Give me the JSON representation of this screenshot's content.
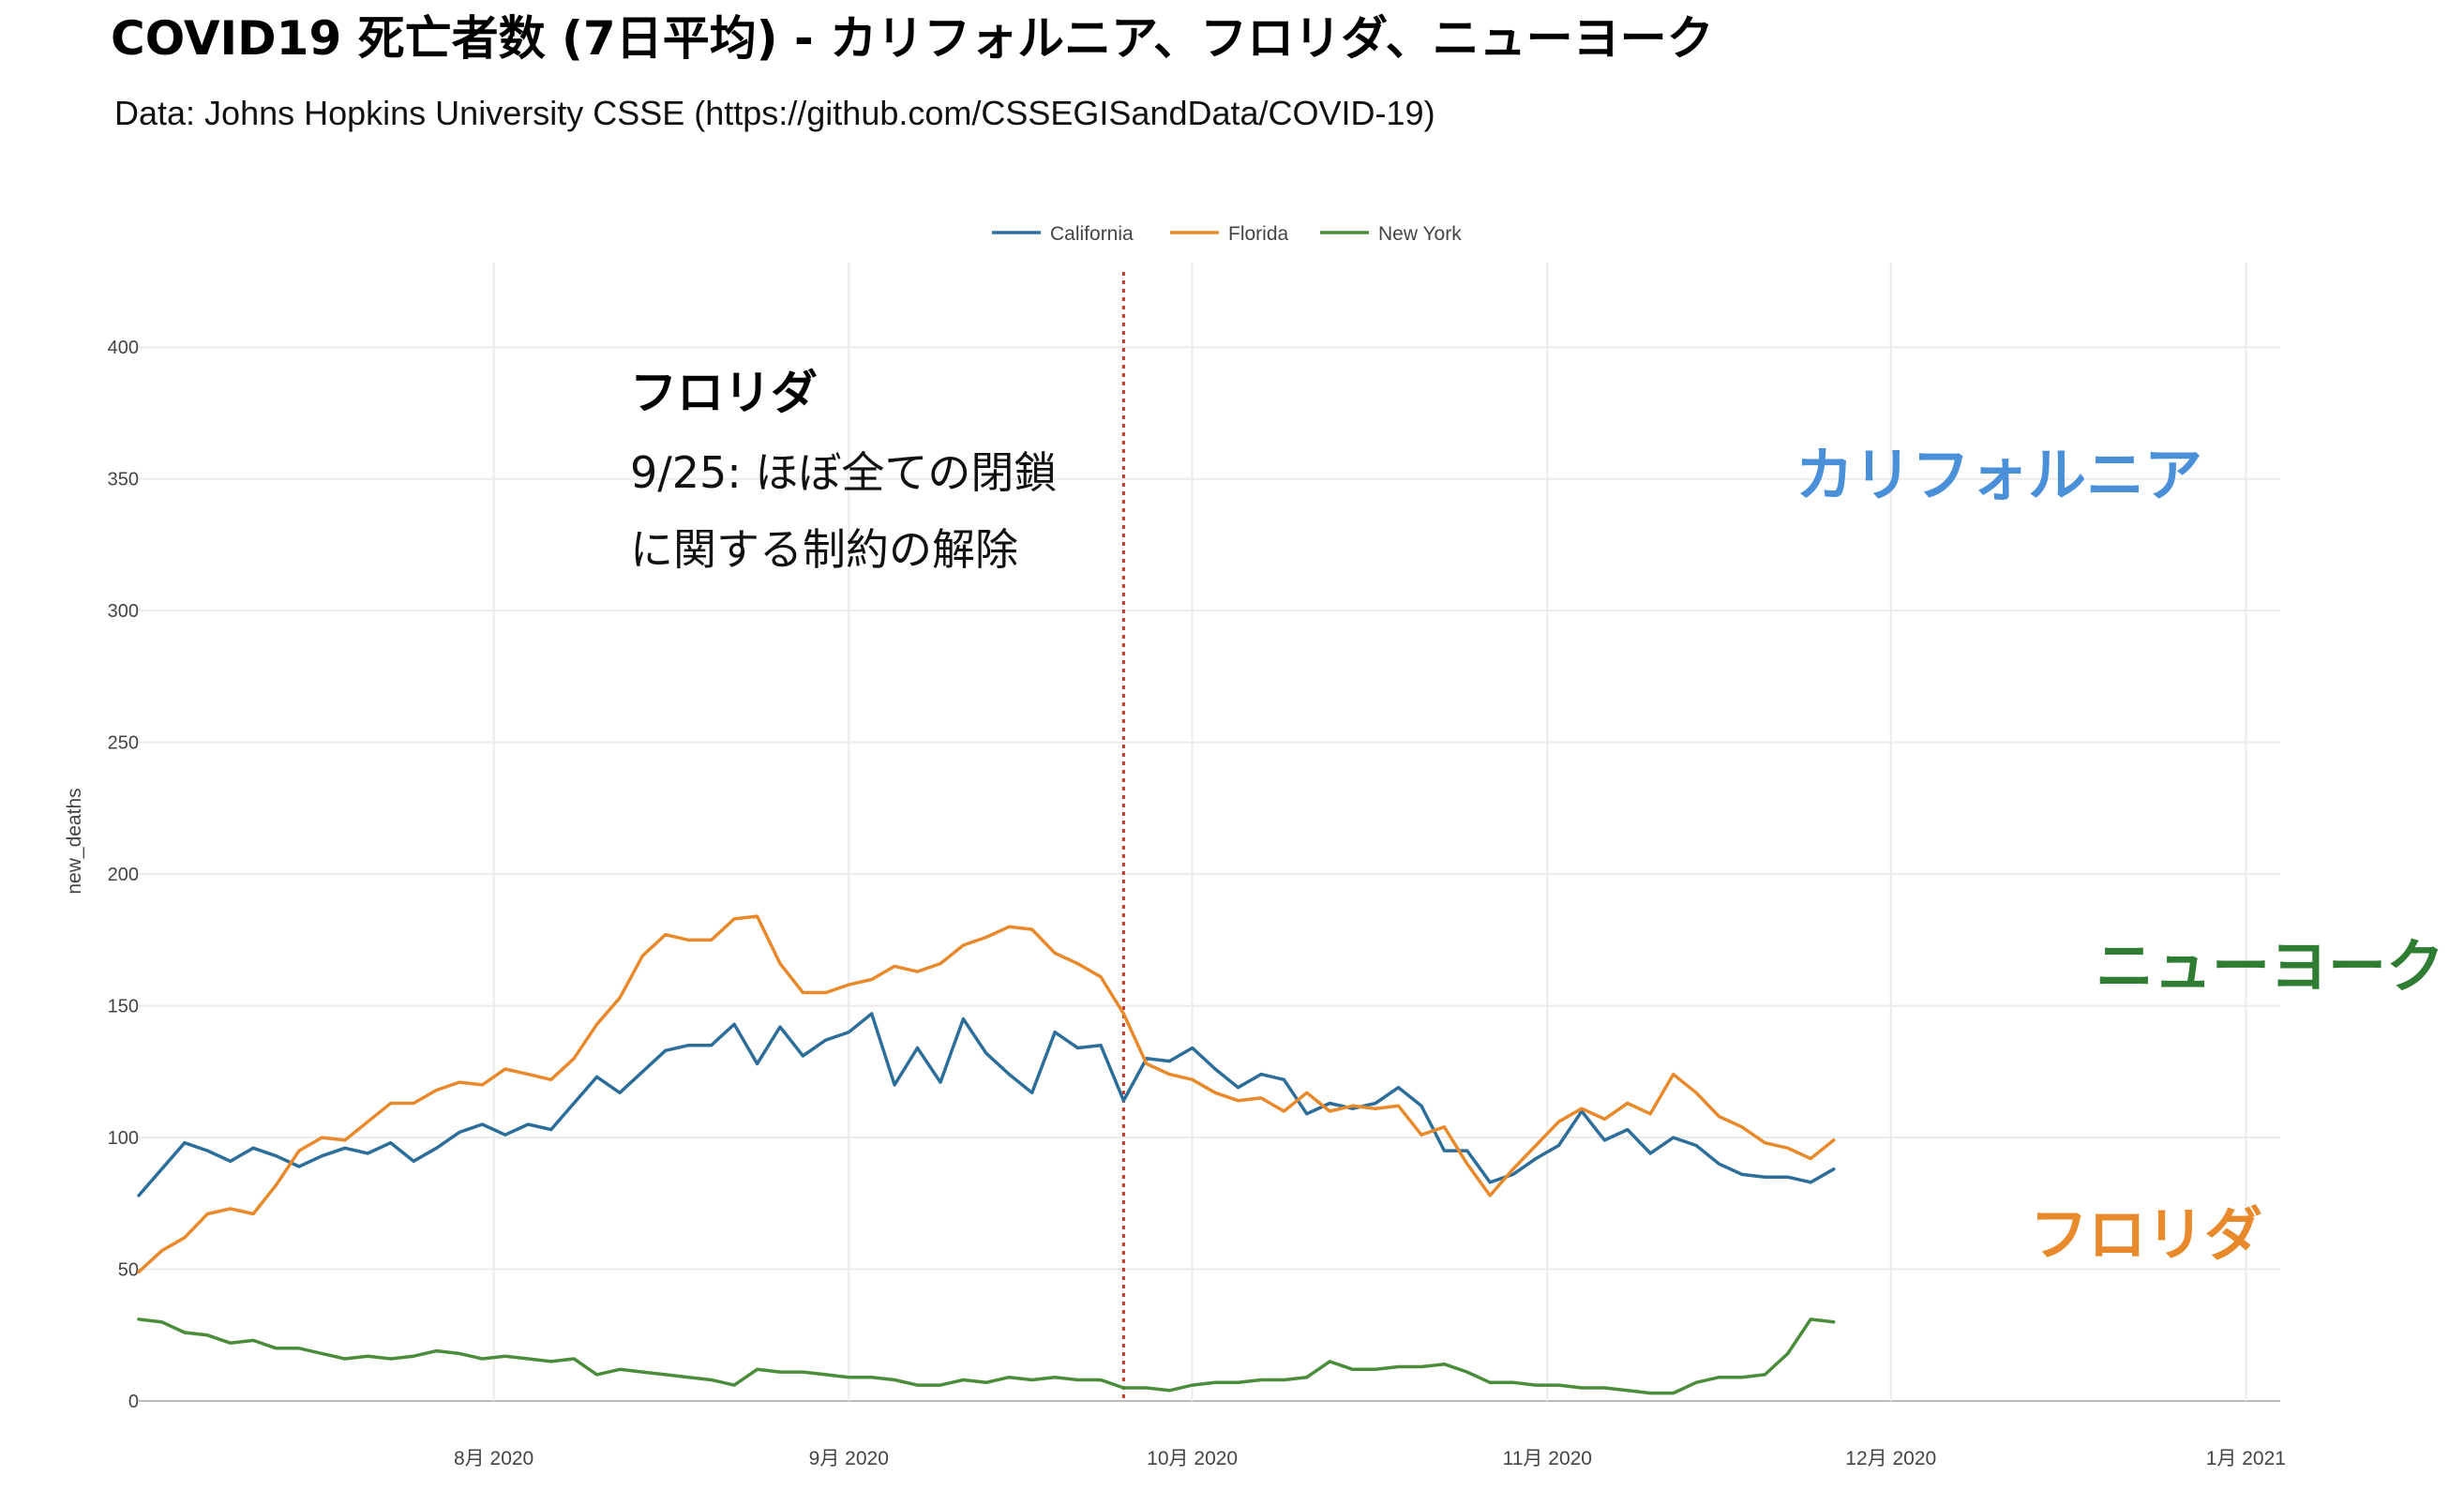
{
  "title": "COVID19 死亡者数 (7日平均) - カリフォルニア、フロリダ、ニューヨーク",
  "subtitle": "Data: Johns Hopkins University CSSE (https://github.com/CSSEGISandData/COVID-19)",
  "chart_data": {
    "type": "line",
    "ylabel": "new_deaths",
    "xlabel": "",
    "ylim": [
      0,
      425
    ],
    "xlim": [
      "2020-07-01",
      "2021-01-04"
    ],
    "y_ticks": [
      0,
      50,
      100,
      150,
      200,
      250,
      300,
      350,
      400
    ],
    "x_ticks": [
      {
        "date": "2020-08-01",
        "label": "8月 2020"
      },
      {
        "date": "2020-09-01",
        "label": "9月 2020"
      },
      {
        "date": "2020-10-01",
        "label": "10月 2020"
      },
      {
        "date": "2020-11-01",
        "label": "11月 2020"
      },
      {
        "date": "2020-12-01",
        "label": "12月 2020"
      },
      {
        "date": "2021-01-01",
        "label": "1月 2021"
      }
    ],
    "grid": true,
    "legend_position": "top-center",
    "vline": {
      "date": "2020-09-25",
      "color": "#c0392b",
      "style": "dotted"
    },
    "annotation": {
      "title": "フロリダ",
      "lines": [
        "9/25: ほぼ全ての閉鎖",
        "に関する制約の解除"
      ]
    },
    "series_labels": [
      {
        "series": "California",
        "text": "カリフォルニア",
        "color": "#4a90d9"
      },
      {
        "series": "New York",
        "text": "ニューヨーク",
        "color": "#2e7d32"
      },
      {
        "series": "Florida",
        "text": "フロリダ",
        "color": "#e8892b"
      }
    ],
    "series": [
      {
        "name": "California",
        "color": "#2c6e99",
        "points": [
          [
            "2020-07-01",
            78
          ],
          [
            "2020-07-03",
            88
          ],
          [
            "2020-07-05",
            98
          ],
          [
            "2020-07-07",
            95
          ],
          [
            "2020-07-09",
            91
          ],
          [
            "2020-07-11",
            96
          ],
          [
            "2020-07-13",
            93
          ],
          [
            "2020-07-15",
            89
          ],
          [
            "2020-07-17",
            93
          ],
          [
            "2020-07-19",
            96
          ],
          [
            "2020-07-21",
            94
          ],
          [
            "2020-07-23",
            98
          ],
          [
            "2020-07-25",
            91
          ],
          [
            "2020-07-27",
            96
          ],
          [
            "2020-07-29",
            102
          ],
          [
            "2020-07-31",
            105
          ],
          [
            "2020-08-02",
            101
          ],
          [
            "2020-08-04",
            105
          ],
          [
            "2020-08-06",
            103
          ],
          [
            "2020-08-08",
            113
          ],
          [
            "2020-08-10",
            123
          ],
          [
            "2020-08-12",
            117
          ],
          [
            "2020-08-14",
            125
          ],
          [
            "2020-08-16",
            133
          ],
          [
            "2020-08-18",
            135
          ],
          [
            "2020-08-20",
            135
          ],
          [
            "2020-08-22",
            143
          ],
          [
            "2020-08-24",
            128
          ],
          [
            "2020-08-26",
            142
          ],
          [
            "2020-08-28",
            131
          ],
          [
            "2020-08-30",
            137
          ],
          [
            "2020-09-01",
            140
          ],
          [
            "2020-09-03",
            147
          ],
          [
            "2020-09-05",
            120
          ],
          [
            "2020-09-07",
            134
          ],
          [
            "2020-09-09",
            121
          ],
          [
            "2020-09-11",
            145
          ],
          [
            "2020-09-13",
            132
          ],
          [
            "2020-09-15",
            124
          ],
          [
            "2020-09-17",
            117
          ],
          [
            "2020-09-19",
            140
          ],
          [
            "2020-09-21",
            134
          ],
          [
            "2020-09-23",
            135
          ],
          [
            "2020-09-25",
            114
          ],
          [
            "2020-09-27",
            130
          ],
          [
            "2020-09-29",
            129
          ],
          [
            "2020-10-01",
            134
          ],
          [
            "2020-10-03",
            126
          ],
          [
            "2020-10-05",
            119
          ],
          [
            "2020-10-07",
            124
          ],
          [
            "2020-10-09",
            122
          ],
          [
            "2020-10-11",
            109
          ],
          [
            "2020-10-13",
            113
          ],
          [
            "2020-10-15",
            111
          ],
          [
            "2020-10-17",
            113
          ],
          [
            "2020-10-19",
            119
          ],
          [
            "2020-10-21",
            112
          ],
          [
            "2020-10-23",
            95
          ],
          [
            "2020-10-25",
            95
          ],
          [
            "2020-10-27",
            83
          ],
          [
            "2020-10-29",
            86
          ],
          [
            "2020-10-31",
            92
          ],
          [
            "2020-11-02",
            97
          ],
          [
            "2020-11-04",
            110
          ],
          [
            "2020-11-06",
            99
          ],
          [
            "2020-11-08",
            103
          ],
          [
            "2020-11-10",
            94
          ],
          [
            "2020-11-12",
            100
          ],
          [
            "2020-11-14",
            97
          ],
          [
            "2020-11-16",
            90
          ],
          [
            "2020-11-18",
            86
          ],
          [
            "2020-11-20",
            85
          ],
          [
            "2020-11-22",
            85
          ],
          [
            "2020-11-24",
            83
          ],
          [
            "2020-11-26",
            88
          ]
        ]
      },
      {
        "name": "Florida",
        "color": "#e8892b",
        "points": [
          [
            "2020-07-01",
            49
          ],
          [
            "2020-07-03",
            57
          ],
          [
            "2020-07-05",
            62
          ],
          [
            "2020-07-07",
            71
          ],
          [
            "2020-07-09",
            73
          ],
          [
            "2020-07-11",
            71
          ],
          [
            "2020-07-13",
            82
          ],
          [
            "2020-07-15",
            95
          ],
          [
            "2020-07-17",
            100
          ],
          [
            "2020-07-19",
            99
          ],
          [
            "2020-07-21",
            106
          ],
          [
            "2020-07-23",
            113
          ],
          [
            "2020-07-25",
            113
          ],
          [
            "2020-07-27",
            118
          ],
          [
            "2020-07-29",
            121
          ],
          [
            "2020-07-31",
            120
          ],
          [
            "2020-08-02",
            126
          ],
          [
            "2020-08-04",
            124
          ],
          [
            "2020-08-06",
            122
          ],
          [
            "2020-08-08",
            130
          ],
          [
            "2020-08-10",
            143
          ],
          [
            "2020-08-12",
            153
          ],
          [
            "2020-08-14",
            169
          ],
          [
            "2020-08-16",
            177
          ],
          [
            "2020-08-18",
            175
          ],
          [
            "2020-08-20",
            175
          ],
          [
            "2020-08-22",
            183
          ],
          [
            "2020-08-24",
            184
          ],
          [
            "2020-08-26",
            166
          ],
          [
            "2020-08-28",
            155
          ],
          [
            "2020-08-30",
            155
          ],
          [
            "2020-09-01",
            158
          ],
          [
            "2020-09-03",
            160
          ],
          [
            "2020-09-05",
            165
          ],
          [
            "2020-09-07",
            163
          ],
          [
            "2020-09-09",
            166
          ],
          [
            "2020-09-11",
            173
          ],
          [
            "2020-09-13",
            176
          ],
          [
            "2020-09-15",
            180
          ],
          [
            "2020-09-17",
            179
          ],
          [
            "2020-09-19",
            170
          ],
          [
            "2020-09-21",
            166
          ],
          [
            "2020-09-23",
            161
          ],
          [
            "2020-09-25",
            147
          ],
          [
            "2020-09-27",
            128
          ],
          [
            "2020-09-29",
            124
          ],
          [
            "2020-10-01",
            122
          ],
          [
            "2020-10-03",
            117
          ],
          [
            "2020-10-05",
            114
          ],
          [
            "2020-10-07",
            115
          ],
          [
            "2020-10-09",
            110
          ],
          [
            "2020-10-11",
            117
          ],
          [
            "2020-10-13",
            110
          ],
          [
            "2020-10-15",
            112
          ],
          [
            "2020-10-17",
            111
          ],
          [
            "2020-10-19",
            112
          ],
          [
            "2020-10-21",
            101
          ],
          [
            "2020-10-23",
            104
          ],
          [
            "2020-10-25",
            90
          ],
          [
            "2020-10-27",
            78
          ],
          [
            "2020-10-29",
            88
          ],
          [
            "2020-10-31",
            97
          ],
          [
            "2020-11-02",
            106
          ],
          [
            "2020-11-04",
            111
          ],
          [
            "2020-11-06",
            107
          ],
          [
            "2020-11-08",
            113
          ],
          [
            "2020-11-10",
            109
          ],
          [
            "2020-11-12",
            124
          ],
          [
            "2020-11-14",
            117
          ],
          [
            "2020-11-16",
            108
          ],
          [
            "2020-11-18",
            104
          ],
          [
            "2020-11-20",
            98
          ],
          [
            "2020-11-22",
            96
          ],
          [
            "2020-11-24",
            92
          ],
          [
            "2020-11-26",
            99
          ]
        ]
      },
      {
        "name": "New York",
        "color": "#4a8c3a",
        "points": [
          [
            "2020-07-01",
            31
          ],
          [
            "2020-07-03",
            30
          ],
          [
            "2020-07-05",
            26
          ],
          [
            "2020-07-07",
            25
          ],
          [
            "2020-07-09",
            22
          ],
          [
            "2020-07-11",
            23
          ],
          [
            "2020-07-13",
            20
          ],
          [
            "2020-07-15",
            20
          ],
          [
            "2020-07-17",
            18
          ],
          [
            "2020-07-19",
            16
          ],
          [
            "2020-07-21",
            17
          ],
          [
            "2020-07-23",
            16
          ],
          [
            "2020-07-25",
            17
          ],
          [
            "2020-07-27",
            19
          ],
          [
            "2020-07-29",
            18
          ],
          [
            "2020-07-31",
            16
          ],
          [
            "2020-08-02",
            17
          ],
          [
            "2020-08-04",
            16
          ],
          [
            "2020-08-06",
            15
          ],
          [
            "2020-08-08",
            16
          ],
          [
            "2020-08-10",
            10
          ],
          [
            "2020-08-12",
            12
          ],
          [
            "2020-08-14",
            11
          ],
          [
            "2020-08-16",
            10
          ],
          [
            "2020-08-18",
            9
          ],
          [
            "2020-08-20",
            8
          ],
          [
            "2020-08-22",
            6
          ],
          [
            "2020-08-24",
            12
          ],
          [
            "2020-08-26",
            11
          ],
          [
            "2020-08-28",
            11
          ],
          [
            "2020-08-30",
            10
          ],
          [
            "2020-09-01",
            9
          ],
          [
            "2020-09-03",
            9
          ],
          [
            "2020-09-05",
            8
          ],
          [
            "2020-09-07",
            6
          ],
          [
            "2020-09-09",
            6
          ],
          [
            "2020-09-11",
            8
          ],
          [
            "2020-09-13",
            7
          ],
          [
            "2020-09-15",
            9
          ],
          [
            "2020-09-17",
            8
          ],
          [
            "2020-09-19",
            9
          ],
          [
            "2020-09-21",
            8
          ],
          [
            "2020-09-23",
            8
          ],
          [
            "2020-09-25",
            5
          ],
          [
            "2020-09-27",
            5
          ],
          [
            "2020-09-29",
            4
          ],
          [
            "2020-10-01",
            6
          ],
          [
            "2020-10-03",
            7
          ],
          [
            "2020-10-05",
            7
          ],
          [
            "2020-10-07",
            8
          ],
          [
            "2020-10-09",
            8
          ],
          [
            "2020-10-11",
            9
          ],
          [
            "2020-10-13",
            15
          ],
          [
            "2020-10-15",
            12
          ],
          [
            "2020-10-17",
            12
          ],
          [
            "2020-10-19",
            13
          ],
          [
            "2020-10-21",
            13
          ],
          [
            "2020-10-23",
            14
          ],
          [
            "2020-10-25",
            11
          ],
          [
            "2020-10-27",
            7
          ],
          [
            "2020-10-29",
            7
          ],
          [
            "2020-10-31",
            6
          ],
          [
            "2020-11-02",
            6
          ],
          [
            "2020-11-04",
            5
          ],
          [
            "2020-11-06",
            5
          ],
          [
            "2020-11-08",
            4
          ],
          [
            "2020-11-10",
            3
          ],
          [
            "2020-11-12",
            3
          ],
          [
            "2020-11-14",
            7
          ],
          [
            "2020-11-16",
            9
          ],
          [
            "2020-11-18",
            9
          ],
          [
            "2020-11-20",
            10
          ],
          [
            "2020-11-22",
            18
          ],
          [
            "2020-11-24",
            31
          ],
          [
            "2020-11-26",
            30
          ]
        ]
      }
    ]
  }
}
